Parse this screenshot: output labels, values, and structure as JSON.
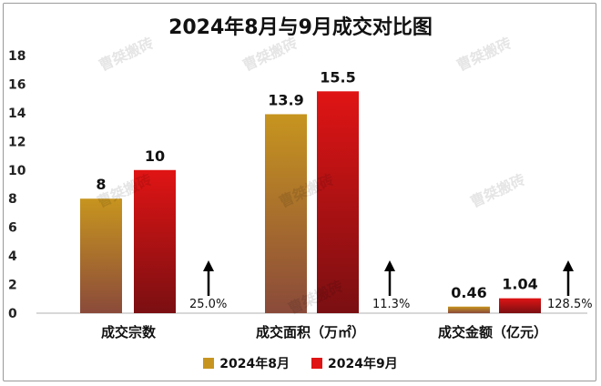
{
  "chart_data": {
    "type": "bar",
    "title": "2024年8月与9月成交对比图",
    "categories": [
      "成交宗数",
      "成交面积（万㎡）",
      "成交金额（亿元）"
    ],
    "series": [
      {
        "name": "2024年8月",
        "values": [
          8,
          13.9,
          0.46
        ],
        "labels": [
          "8",
          "13.9",
          "0.46"
        ]
      },
      {
        "name": "2024年9月",
        "values": [
          10,
          15.5,
          1.04
        ],
        "labels": [
          "10",
          "15.5",
          "1.04"
        ]
      }
    ],
    "growth": [
      "25.0%",
      "11.3%",
      "128.5%"
    ],
    "yticks": [
      "0",
      "2",
      "4",
      "6",
      "8",
      "10",
      "12",
      "14",
      "16",
      "18"
    ],
    "ylim": [
      0,
      18
    ],
    "grid": false,
    "legend_position": "bottom",
    "colors": {
      "aug_top": "#c7951f",
      "aug_bottom": "#8a4a3a",
      "sep_top": "#e01414",
      "sep_bottom": "#7a0f12"
    }
  },
  "watermark": "曹桀搬砖"
}
